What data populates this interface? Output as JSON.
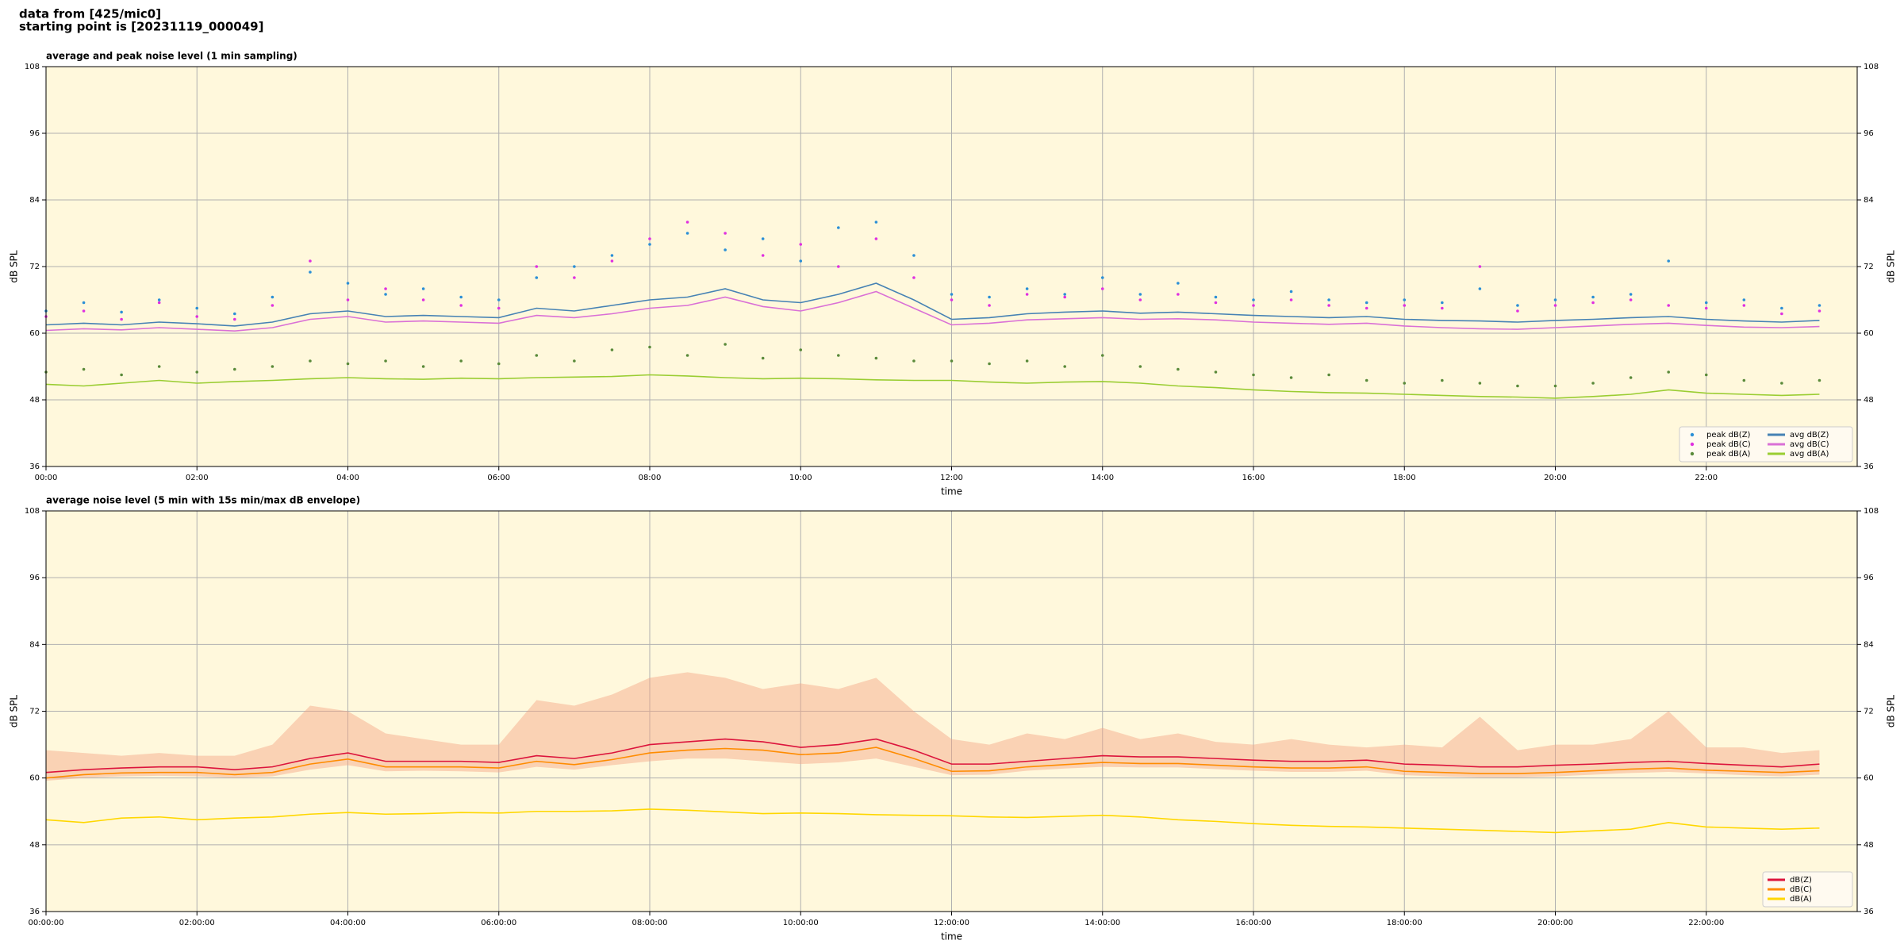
{
  "header": {
    "line1": "data from [425/mic0]",
    "line2": "starting point is [20231119_000049]"
  },
  "chart_data": [
    {
      "type": "line",
      "title": "average and peak noise level (1 min sampling)",
      "xlabel": "time",
      "ylabel": "dB SPL",
      "xlim": [
        0,
        24
      ],
      "ylim": [
        36,
        108
      ],
      "yticks": [
        36,
        48,
        60,
        72,
        84,
        96,
        108
      ],
      "xticks": [
        {
          "value": 0,
          "label": "00:00"
        },
        {
          "value": 2,
          "label": "02:00"
        },
        {
          "value": 4,
          "label": "04:00"
        },
        {
          "value": 6,
          "label": "06:00"
        },
        {
          "value": 8,
          "label": "08:00"
        },
        {
          "value": 10,
          "label": "10:00"
        },
        {
          "value": 12,
          "label": "12:00"
        },
        {
          "value": 14,
          "label": "14:00"
        },
        {
          "value": 16,
          "label": "16:00"
        },
        {
          "value": 18,
          "label": "18:00"
        },
        {
          "value": 20,
          "label": "20:00"
        },
        {
          "value": 22,
          "label": "22:00"
        }
      ],
      "grid": true,
      "legend": "lower right",
      "legend_columns": 2,
      "x": [
        0,
        0.5,
        1,
        1.5,
        2,
        2.5,
        3,
        3.5,
        4,
        4.5,
        5,
        5.5,
        6,
        6.5,
        7,
        7.5,
        8,
        8.5,
        9,
        9.5,
        10,
        10.5,
        11,
        11.5,
        12,
        12.5,
        13,
        13.5,
        14,
        14.5,
        15,
        15.5,
        16,
        16.5,
        17,
        17.5,
        18,
        18.5,
        19,
        19.5,
        20,
        20.5,
        21,
        21.5,
        22,
        22.5,
        23,
        23.5
      ],
      "series": [
        {
          "name": "peak dB(Z)",
          "style": "scatter",
          "color": "#2b8fd6",
          "values": [
            64,
            65.5,
            63.8,
            66,
            64.5,
            63.5,
            66.5,
            71,
            69,
            67,
            68,
            66.5,
            66,
            70,
            72,
            74,
            76,
            78,
            75,
            77,
            73,
            79,
            80,
            74,
            67,
            66.5,
            68,
            67,
            70,
            67,
            69,
            66.5,
            66,
            67.5,
            66,
            65.5,
            66,
            65.5,
            68,
            65,
            66,
            66.5,
            67,
            73,
            65.5,
            66,
            64.5,
            65
          ]
        },
        {
          "name": "peak dB(C)",
          "style": "scatter",
          "color": "#e030e0",
          "values": [
            63,
            64,
            62.5,
            65.5,
            63,
            62.5,
            65,
            73,
            66,
            68,
            66,
            65,
            64.5,
            72,
            70,
            73,
            77,
            80,
            78,
            74,
            76,
            72,
            77,
            70,
            66,
            65,
            67,
            66.5,
            68,
            66,
            67,
            65.5,
            65,
            66,
            65,
            64.5,
            65,
            64.5,
            72,
            64,
            65,
            65.5,
            66,
            65,
            64.5,
            65,
            63.5,
            64
          ]
        },
        {
          "name": "peak dB(A)",
          "style": "scatter",
          "color": "#5a8a3a",
          "values": [
            53,
            53.5,
            52.5,
            54,
            53,
            53.5,
            54,
            55,
            54.5,
            55,
            54,
            55,
            54.5,
            56,
            55,
            57,
            57.5,
            56,
            58,
            55.5,
            57,
            56,
            55.5,
            55,
            55,
            54.5,
            55,
            54,
            56,
            54,
            53.5,
            53,
            52.5,
            52,
            52.5,
            51.5,
            51,
            51.5,
            51,
            50.5,
            50.5,
            51,
            52,
            53,
            52.5,
            51.5,
            51,
            51.5
          ]
        },
        {
          "name": "avg dB(Z)",
          "style": "line",
          "color": "#4682b4",
          "values": [
            61.5,
            61.8,
            61.5,
            62,
            61.7,
            61.3,
            62,
            63.5,
            64,
            63,
            63.2,
            63,
            62.8,
            64.5,
            64,
            65,
            66,
            66.5,
            68,
            66,
            65.5,
            67,
            69,
            66,
            62.5,
            62.8,
            63.5,
            63.8,
            64,
            63.6,
            63.8,
            63.5,
            63.2,
            63,
            62.8,
            63,
            62.5,
            62.3,
            62.2,
            62,
            62.3,
            62.5,
            62.8,
            63,
            62.5,
            62.2,
            62,
            62.3
          ]
        },
        {
          "name": "avg dB(C)",
          "style": "line",
          "color": "#da70d6",
          "values": [
            60.5,
            60.8,
            60.6,
            61,
            60.7,
            60.4,
            61,
            62.5,
            63,
            62,
            62.2,
            62,
            61.8,
            63.2,
            62.8,
            63.5,
            64.5,
            65,
            66.5,
            64.8,
            64,
            65.5,
            67.5,
            64.5,
            61.5,
            61.8,
            62.4,
            62.6,
            62.8,
            62.5,
            62.6,
            62.4,
            62,
            61.8,
            61.6,
            61.8,
            61.3,
            61,
            60.8,
            60.7,
            61,
            61.3,
            61.6,
            61.8,
            61.4,
            61.1,
            61,
            61.2
          ]
        },
        {
          "name": "avg dB(A)",
          "style": "line",
          "color": "#9acd32",
          "values": [
            50.8,
            50.5,
            51,
            51.5,
            51,
            51.3,
            51.5,
            51.8,
            52,
            51.8,
            51.7,
            51.9,
            51.8,
            52,
            52.1,
            52.2,
            52.5,
            52.3,
            52,
            51.8,
            51.9,
            51.8,
            51.6,
            51.5,
            51.5,
            51.2,
            51,
            51.2,
            51.3,
            51,
            50.5,
            50.2,
            49.8,
            49.5,
            49.3,
            49.2,
            49,
            48.8,
            48.6,
            48.5,
            48.3,
            48.6,
            49,
            49.8,
            49.2,
            49,
            48.8,
            49
          ]
        }
      ]
    },
    {
      "type": "line",
      "title": "average noise level (5 min with 15s min/max dB envelope)",
      "xlabel": "time",
      "ylabel": "dB SPL",
      "xlim": [
        0,
        24
      ],
      "ylim": [
        36,
        108
      ],
      "yticks": [
        36,
        48,
        60,
        72,
        84,
        96,
        108
      ],
      "xticks": [
        {
          "value": 0,
          "label": "00:00:00"
        },
        {
          "value": 2,
          "label": "02:00:00"
        },
        {
          "value": 4,
          "label": "04:00:00"
        },
        {
          "value": 6,
          "label": "06:00:00"
        },
        {
          "value": 8,
          "label": "08:00:00"
        },
        {
          "value": 10,
          "label": "10:00:00"
        },
        {
          "value": 12,
          "label": "12:00:00"
        },
        {
          "value": 14,
          "label": "14:00:00"
        },
        {
          "value": 16,
          "label": "16:00:00"
        },
        {
          "value": 18,
          "label": "18:00:00"
        },
        {
          "value": 20,
          "label": "20:00:00"
        },
        {
          "value": 22,
          "label": "22:00:00"
        }
      ],
      "grid": true,
      "legend": "lower right",
      "legend_columns": 1,
      "x": [
        0,
        0.5,
        1,
        1.5,
        2,
        2.5,
        3,
        3.5,
        4,
        4.5,
        5,
        5.5,
        6,
        6.5,
        7,
        7.5,
        8,
        8.5,
        9,
        9.5,
        10,
        10.5,
        11,
        11.5,
        12,
        12.5,
        13,
        13.5,
        14,
        14.5,
        15,
        15.5,
        16,
        16.5,
        17,
        17.5,
        18,
        18.5,
        19,
        19.5,
        20,
        20.5,
        21,
        21.5,
        22,
        22.5,
        23,
        23.5
      ],
      "envelope": {
        "color": "#f4a582",
        "upper": [
          65,
          64.5,
          64,
          64.5,
          64,
          64,
          66,
          73,
          72,
          68,
          67,
          66,
          66,
          74,
          73,
          75,
          78,
          79,
          78,
          76,
          77,
          76,
          78,
          72,
          67,
          66,
          68,
          67,
          69,
          67,
          68,
          66.5,
          66,
          67,
          66,
          65.5,
          66,
          65.5,
          71,
          65,
          66,
          66,
          67,
          72,
          65.5,
          65.5,
          64.5,
          65
        ],
        "lower": [
          59.5,
          60,
          60.3,
          60.4,
          60.3,
          60,
          60.3,
          61.5,
          62.3,
          61.2,
          61.3,
          61.2,
          61,
          62,
          61.5,
          62.3,
          63,
          63.5,
          63.5,
          63,
          62.5,
          62.8,
          63.5,
          62,
          60.5,
          60.6,
          61.3,
          61.7,
          62,
          61.9,
          61.9,
          61.6,
          61.3,
          61.1,
          61.1,
          61.3,
          60.5,
          60.3,
          60.1,
          60.1,
          60.3,
          60.6,
          60.9,
          61.1,
          60.8,
          60.5,
          60.3,
          60.6
        ]
      },
      "series": [
        {
          "name": "dB(Z)",
          "style": "line",
          "color": "#dc143c",
          "values": [
            61,
            61.5,
            61.8,
            62,
            62,
            61.5,
            62,
            63.5,
            64.5,
            63,
            63,
            63,
            62.8,
            64,
            63.5,
            64.5,
            66,
            66.5,
            67,
            66.5,
            65.5,
            66,
            67,
            65,
            62.5,
            62.5,
            63,
            63.5,
            64,
            63.8,
            63.8,
            63.5,
            63.2,
            63,
            63,
            63.2,
            62.5,
            62.3,
            62,
            62,
            62.3,
            62.5,
            62.8,
            63,
            62.6,
            62.3,
            62,
            62.5
          ]
        },
        {
          "name": "dB(C)",
          "style": "line",
          "color": "#ff8c00",
          "values": [
            60,
            60.6,
            60.9,
            61,
            61,
            60.6,
            61,
            62.5,
            63.4,
            62,
            62,
            62,
            61.8,
            63,
            62.4,
            63.3,
            64.5,
            65,
            65.3,
            65,
            64.2,
            64.5,
            65.5,
            63.5,
            61.2,
            61.3,
            62,
            62.4,
            62.8,
            62.6,
            62.6,
            62.3,
            62,
            61.8,
            61.8,
            62,
            61.2,
            61,
            60.8,
            60.8,
            61,
            61.3,
            61.6,
            61.8,
            61.4,
            61.2,
            61,
            61.3
          ]
        },
        {
          "name": "dB(A)",
          "style": "line",
          "color": "#ffd700",
          "values": [
            52.5,
            52,
            52.8,
            53,
            52.5,
            52.8,
            53,
            53.5,
            53.8,
            53.5,
            53.6,
            53.8,
            53.7,
            54,
            54,
            54.1,
            54.4,
            54.2,
            53.9,
            53.6,
            53.7,
            53.6,
            53.4,
            53.3,
            53.2,
            53,
            52.9,
            53.1,
            53.3,
            53,
            52.5,
            52.2,
            51.8,
            51.5,
            51.3,
            51.2,
            51,
            50.8,
            50.6,
            50.4,
            50.2,
            50.5,
            50.8,
            52,
            51.2,
            51,
            50.8,
            51
          ]
        }
      ]
    }
  ]
}
